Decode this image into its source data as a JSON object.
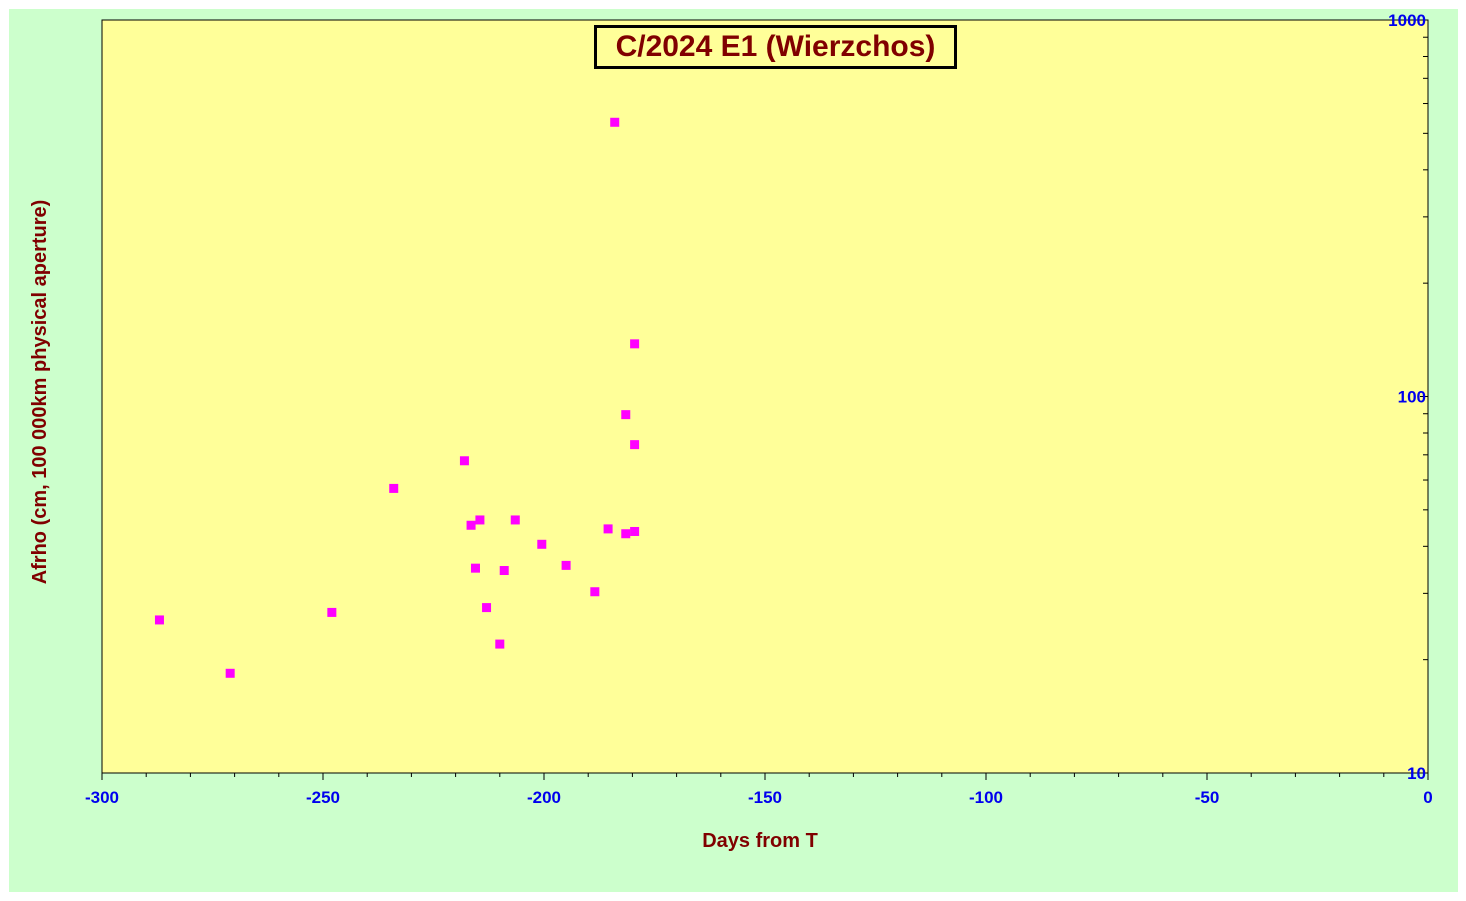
{
  "chart_data": {
    "type": "scatter",
    "title": "C/2024 E1 (Wierzchos)",
    "xlabel": "Days from  T",
    "ylabel": "Afrho  (cm, 100 000km physical  aperture)",
    "xlim": [
      -300,
      0
    ],
    "ylim": [
      10,
      1000
    ],
    "y_scale": "log",
    "y_axis_side": "right",
    "grid": false,
    "x_ticks": [
      -300,
      -250,
      -200,
      -150,
      -100,
      -50,
      0
    ],
    "x_tick_labels": [
      "-300",
      "-250",
      "-200",
      "-150",
      "-100",
      "-50",
      "0"
    ],
    "y_ticks": [
      10,
      100,
      1000
    ],
    "y_tick_labels": [
      "10",
      "100",
      "1000"
    ],
    "series": [
      {
        "marker": "square",
        "color": "#ff00ff",
        "points": [
          {
            "x": -287,
            "y": 25.5
          },
          {
            "x": -271,
            "y": 18.4
          },
          {
            "x": -248,
            "y": 26.7
          },
          {
            "x": -234,
            "y": 57
          },
          {
            "x": -218,
            "y": 67.5
          },
          {
            "x": -216.5,
            "y": 45.5
          },
          {
            "x": -215.5,
            "y": 35
          },
          {
            "x": -214.5,
            "y": 47
          },
          {
            "x": -213,
            "y": 27.5
          },
          {
            "x": -210,
            "y": 22
          },
          {
            "x": -209,
            "y": 34.5
          },
          {
            "x": -206.5,
            "y": 47
          },
          {
            "x": -200.5,
            "y": 40.5
          },
          {
            "x": -195,
            "y": 35.6
          },
          {
            "x": -188.5,
            "y": 30.3
          },
          {
            "x": -185.5,
            "y": 44.5
          },
          {
            "x": -184,
            "y": 535
          },
          {
            "x": -181.5,
            "y": 43.2
          },
          {
            "x": -181.5,
            "y": 89.5
          },
          {
            "x": -179.5,
            "y": 43.8
          },
          {
            "x": -179.5,
            "y": 74.5
          },
          {
            "x": -179.5,
            "y": 138
          }
        ]
      }
    ]
  },
  "colors": {
    "outer_background": "#ccffcc",
    "plot_background": "#ffff99",
    "marker": "#ff00ff",
    "tick_labels": "#0000ee",
    "titles": "#800000"
  }
}
